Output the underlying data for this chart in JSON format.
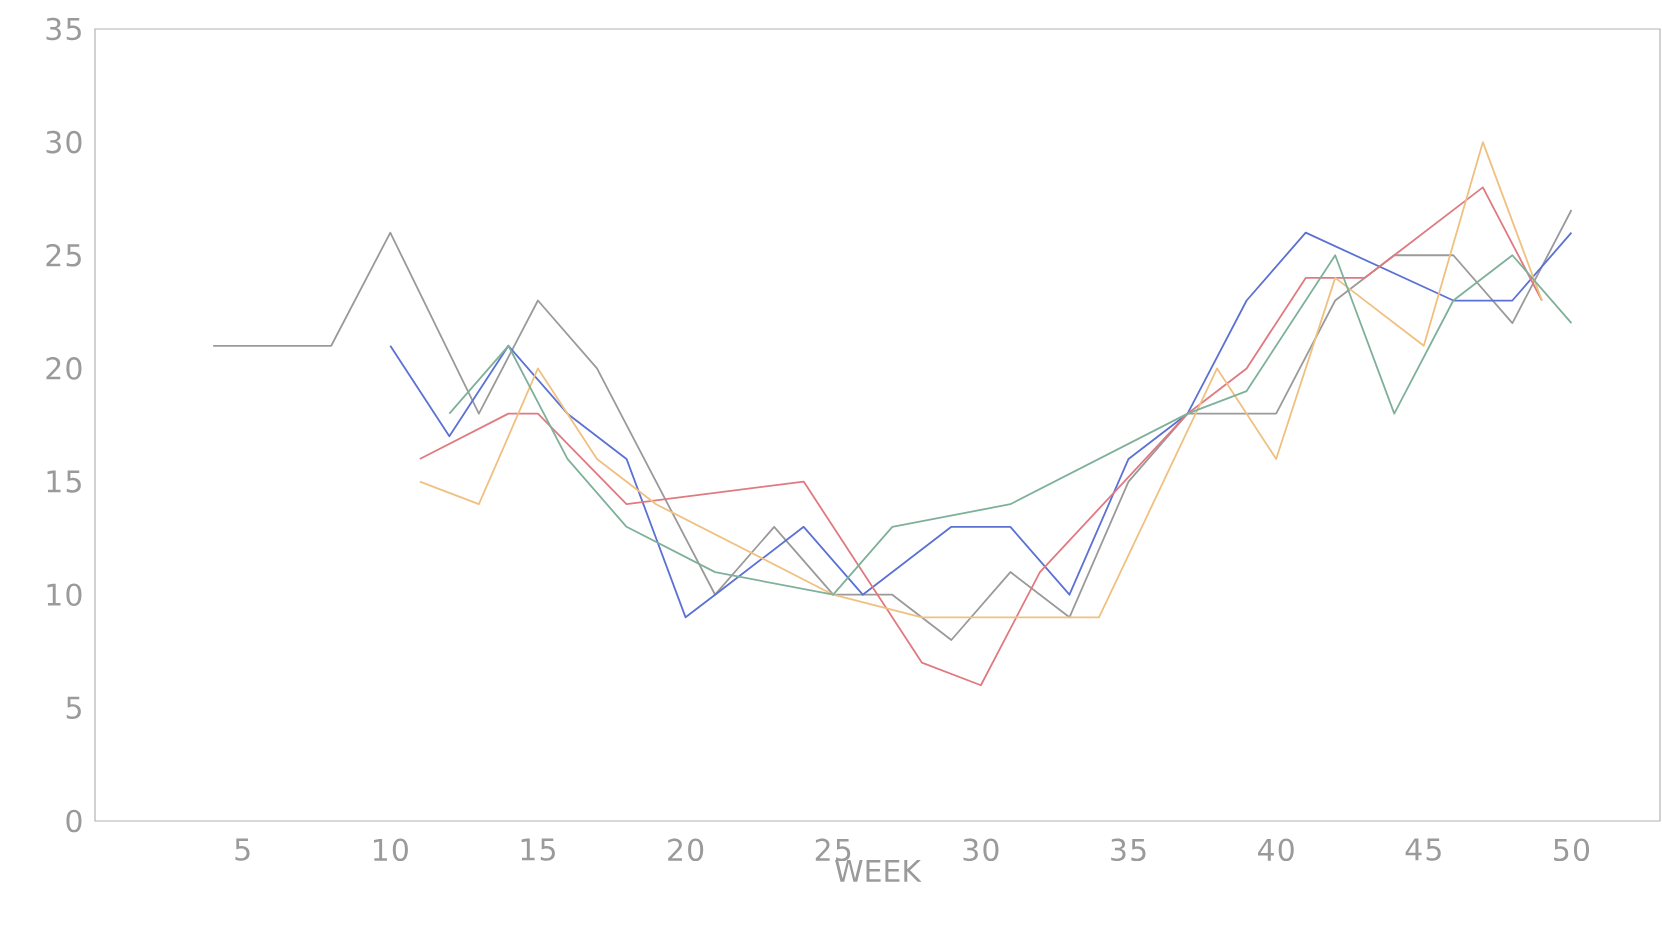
{
  "chart_data": {
    "type": "line",
    "xlabel": "WEEK",
    "xlim": [
      0,
      53
    ],
    "ylim": [
      0,
      35
    ],
    "xticks": [
      5,
      10,
      15,
      20,
      25,
      30,
      35,
      40,
      45,
      50
    ],
    "yticks": [
      0,
      5,
      10,
      15,
      20,
      25,
      30,
      35
    ],
    "grid": false,
    "marker": "none",
    "line_style": "solid",
    "series": [
      {
        "color": "#9a9a9a",
        "x": [
          4,
          8,
          10,
          13,
          15,
          17,
          21,
          23,
          25,
          27,
          29,
          31,
          33,
          35,
          37,
          40,
          42,
          44,
          46,
          48,
          50
        ],
        "values": [
          21,
          21,
          26,
          18,
          23,
          20,
          10,
          13,
          10,
          10,
          8,
          11,
          9,
          15,
          18,
          18,
          23,
          25,
          25,
          22,
          27
        ]
      },
      {
        "color": "#5b72d4",
        "x": [
          10,
          12,
          14,
          16,
          18,
          20,
          21,
          24,
          26,
          29,
          31,
          33,
          35,
          37,
          39,
          41,
          46,
          48,
          50
        ],
        "values": [
          21,
          17,
          21,
          18,
          16,
          9,
          10,
          13,
          10,
          13,
          13,
          10,
          16,
          18,
          23,
          26,
          23,
          23,
          26
        ]
      },
      {
        "color": "#e07a80",
        "x": [
          11,
          14,
          15,
          18,
          24,
          28,
          30,
          32,
          37,
          39,
          41,
          43,
          44,
          47,
          49
        ],
        "values": [
          16,
          18,
          18,
          14,
          15,
          7,
          6,
          11,
          18,
          20,
          24,
          24,
          25,
          28,
          23
        ]
      },
      {
        "color": "#f0c080",
        "x": [
          11,
          13,
          15,
          17,
          19,
          25,
          28,
          34,
          38,
          40,
          42,
          45,
          47,
          49
        ],
        "values": [
          15,
          14,
          20,
          16,
          14,
          10,
          9,
          9,
          20,
          16,
          24,
          21,
          30,
          23
        ]
      },
      {
        "color": "#7fb09a",
        "x": [
          12,
          14,
          16,
          18,
          21,
          25,
          27,
          31,
          37,
          39,
          42,
          44,
          46,
          48,
          50
        ],
        "values": [
          18,
          21,
          16,
          13,
          11,
          10,
          13,
          14,
          18,
          19,
          25,
          18,
          23,
          25,
          22
        ]
      }
    ]
  }
}
